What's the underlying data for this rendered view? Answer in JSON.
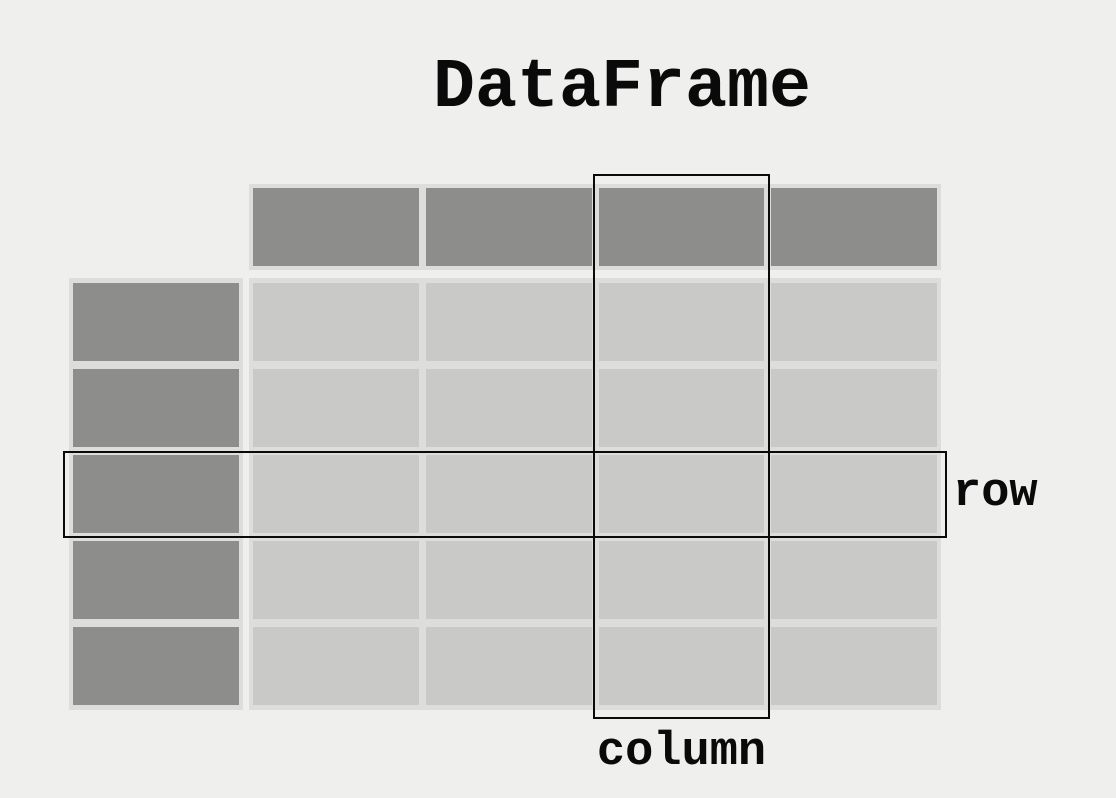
{
  "diagram": {
    "title": "DataFrame",
    "row_label": "row",
    "column_label": "column",
    "structure": {
      "header_columns": 4,
      "index_rows": 5,
      "data_rows": 5,
      "data_columns": 4,
      "header_cell_count": 4,
      "index_cell_count": 5,
      "data_cell_count": 20,
      "highlighted_column_index": 3,
      "highlighted_row_index": 3
    },
    "colors": {
      "background": "#efefee",
      "header_fill": "#8d8d8b",
      "index_fill": "#8d8d8b",
      "data_cell_fill": "#c9c9c8",
      "cell_frame": "#dddddc",
      "highlight_outline": "#0a0a0a",
      "text": "#0a0a0a"
    }
  }
}
